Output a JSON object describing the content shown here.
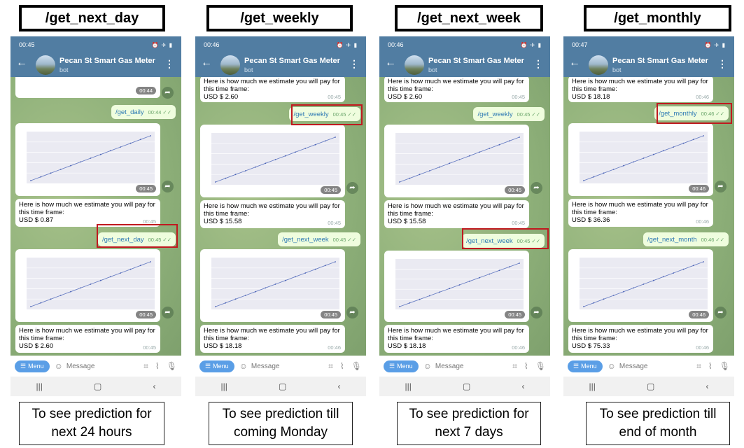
{
  "panels": [
    {
      "command_title": "/get_next_day",
      "caption_line1": "To see prediction for",
      "caption_line2": "next 24 hours",
      "status_time": "00:45",
      "top_time": "00:44",
      "out1": {
        "text": "/get_daily",
        "time": "00:44"
      },
      "chart1_time": "00:45",
      "msg1": {
        "line1": "Here is how much we estimate you will pay for",
        "line2": "this time frame:",
        "line3": "USD $ 0.87",
        "time": "00:45"
      },
      "out2": {
        "text": "/get_next_day",
        "time": "00:45"
      },
      "chart2_time": "00:45",
      "msg2": {
        "line1": "Here is how much we estimate you will pay for",
        "line2": "this time frame:",
        "line3": "USD $ 2.60",
        "time": "00:45"
      }
    },
    {
      "command_title": "/get_weekly",
      "caption_line1": "To see prediction till",
      "caption_line2": "coming Monday",
      "status_time": "00:46",
      "top_msg": {
        "line1": "Here is how much we estimate you will pay for",
        "line2": "this time frame:",
        "line3": "USD $ 2.60",
        "time": "00:45"
      },
      "out1": {
        "text": "/get_weekly",
        "time": "00:45"
      },
      "chart1_time": "00:45",
      "msg1": {
        "line1": "Here is how much we estimate you will pay for",
        "line2": "this time frame:",
        "line3": "USD $ 15.58",
        "time": "00:45"
      },
      "out2": {
        "text": "/get_next_week",
        "time": "00:45"
      },
      "chart2_time": "00:45",
      "msg2": {
        "line1": "Here is how much we estimate you will pay for",
        "line2": "this time frame:",
        "line3": "USD $ 18.18",
        "time": "00:46"
      }
    },
    {
      "command_title": "/get_next_week",
      "caption_line1": "To see prediction for",
      "caption_line2": "next 7 days",
      "status_time": "00:46",
      "top_msg": {
        "line1": "Here is how much we estimate you will pay for",
        "line2": "this time frame:",
        "line3": "USD $ 2.60",
        "time": "00:45"
      },
      "out1": {
        "text": "/get_weekly",
        "time": "00:45"
      },
      "chart1_time": "00:45",
      "msg1": {
        "line1": "Here is how much we estimate you will pay for",
        "line2": "this time frame:",
        "line3": "USD $ 15.58",
        "time": "00:45"
      },
      "out2": {
        "text": "/get_next_week",
        "time": "00:45"
      },
      "chart2_time": "00:45",
      "msg2": {
        "line1": "Here is how much we estimate you will pay for",
        "line2": "this time frame:",
        "line3": "USD $ 18.18",
        "time": "00:46"
      }
    },
    {
      "command_title": "/get_monthly",
      "caption_line1": "To see prediction till",
      "caption_line2": "end of month",
      "status_time": "00:47",
      "top_msg": {
        "line1": "Here is how much we estimate you will pay for",
        "line2": "this time frame:",
        "line3": "USD $ 18.18",
        "time": "00:46"
      },
      "out1": {
        "text": "/get_monthly",
        "time": "00:46"
      },
      "chart1_time": "00:46",
      "msg1": {
        "line1": "Here is how much we estimate you will pay for",
        "line2": "this time frame:",
        "line3": "USD $ 36.36",
        "time": "00:46"
      },
      "out2": {
        "text": "/get_next_month",
        "time": "00:46"
      },
      "chart2_time": "00:46",
      "msg2": {
        "line1": "Here is how much we estimate you will pay for",
        "line2": "this time frame:",
        "line3": "USD $ 75.33",
        "time": "00:46"
      }
    }
  ],
  "chat": {
    "name": "Pecan St Smart Gas Meter",
    "subtitle": "bot"
  },
  "inputbar": {
    "menu_label": "Menu",
    "placeholder": "Message"
  },
  "colors": {
    "header": "#517da2",
    "highlight": "#c0191f",
    "outgoing": "#effdde",
    "menu": "#5a9ee6"
  }
}
